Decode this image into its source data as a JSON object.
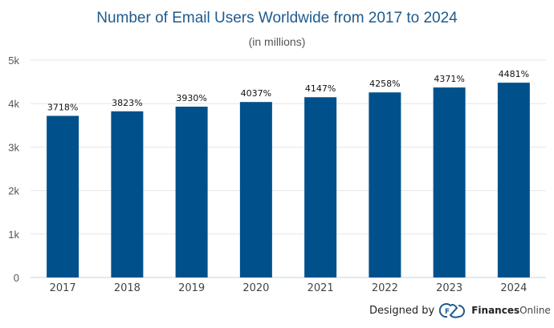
{
  "chart_data": {
    "type": "bar",
    "title": "Number of Email Users Worldwide from 2017 to 2024",
    "subtitle": "(in millions)",
    "categories": [
      "2017",
      "2018",
      "2019",
      "2020",
      "2021",
      "2022",
      "2023",
      "2024"
    ],
    "values": [
      3718,
      3823,
      3930,
      4037,
      4147,
      4258,
      4371,
      4481
    ],
    "data_labels": [
      "3718%",
      "3823%",
      "3930%",
      "4037%",
      "4147%",
      "4258%",
      "4371%",
      "4481%"
    ],
    "yticks": [
      "0",
      "1k",
      "2k",
      "3k",
      "4k",
      "5k"
    ],
    "ylim": [
      0,
      5000
    ],
    "grid": true,
    "bar_color": "#00508c"
  },
  "credit": {
    "designed_by": "Designed by",
    "brand_bold": "Finances",
    "brand_light": "Online",
    "logo_icon": "cloud-f-icon"
  }
}
